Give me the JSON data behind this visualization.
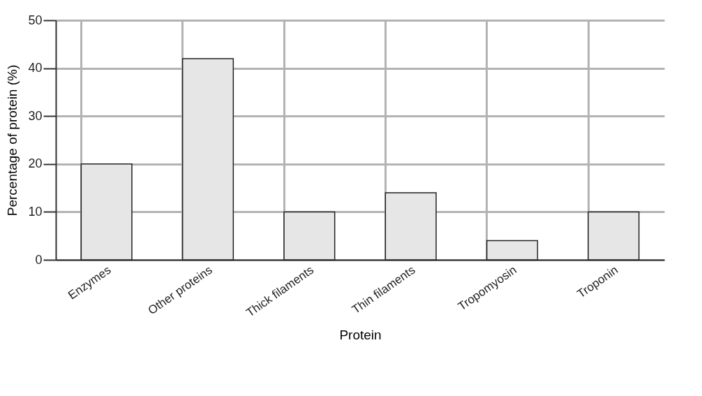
{
  "chart_data": {
    "type": "bar",
    "xlabel": "Protein",
    "ylabel": "Percentage of protein (%)",
    "categories": [
      "Enzymes",
      "Other proteins",
      "Thick filaments",
      "Thin filaments",
      "Tropomyosin",
      "Troponin"
    ],
    "values": [
      20,
      42,
      10,
      14,
      4,
      10
    ],
    "color": "#e6e6e6",
    "ylim": [
      0,
      50
    ],
    "yticks": [
      0,
      10,
      20,
      30,
      40,
      50
    ],
    "grid": true
  }
}
